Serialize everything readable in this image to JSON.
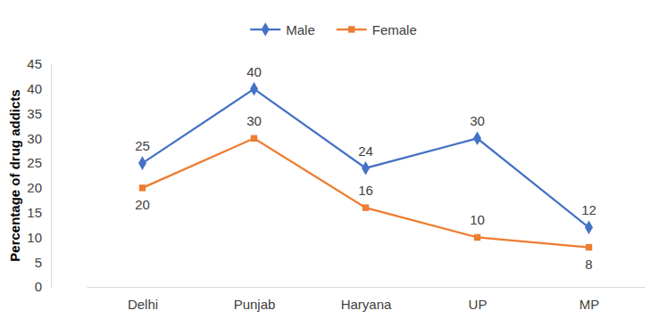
{
  "chart_data": {
    "type": "line",
    "y_label": "Percentage of drug addicts",
    "categories": [
      "Delhi",
      "Punjab",
      "Haryana",
      "UP",
      "MP"
    ],
    "series": [
      {
        "name": "Male",
        "color": "#4472c4",
        "marker": "diamond",
        "values": [
          25,
          40,
          24,
          30,
          12
        ]
      },
      {
        "name": "Female",
        "color": "#ed7d31",
        "marker": "square",
        "values": [
          20,
          30,
          16,
          10,
          8
        ]
      }
    ],
    "ylim": [
      0,
      45
    ],
    "yticks": [
      0,
      5,
      10,
      15,
      20,
      25,
      30,
      35,
      40,
      45
    ],
    "grid": false,
    "legend": "top",
    "data_labels": true
  }
}
